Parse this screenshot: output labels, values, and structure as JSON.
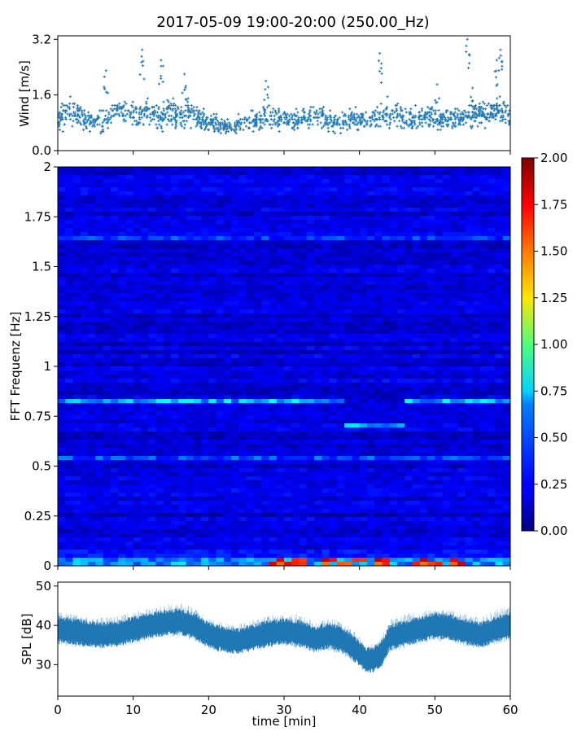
{
  "title": "2017-05-09 19:00-20:00 (250.00_Hz)",
  "chart_data": [
    {
      "type": "scatter",
      "ylabel": "Wind [m/s]",
      "xlim": [
        0,
        60
      ],
      "ylim": [
        0,
        3.3
      ],
      "yticks": [
        0.0,
        1.6,
        3.2
      ],
      "yticklabels": [
        "0.0",
        "1.6",
        "3.2"
      ],
      "marker": "+",
      "color": "#1f77b4",
      "series": [
        {
          "x": [
            0.5,
            1.5,
            3,
            4.5,
            6,
            7.5,
            9,
            10.5,
            12,
            13.5,
            15,
            16.5,
            18,
            19.5,
            21,
            22.5,
            24,
            25.5,
            27,
            28.5,
            30,
            31.5,
            33,
            34.5,
            36,
            37.5,
            39,
            40.5,
            42,
            43.5,
            45,
            46.5,
            48,
            49.5,
            51,
            52.5,
            54,
            55.5,
            57,
            58.5,
            59.5
          ],
          "y": [
            0.95,
            1.1,
            1.0,
            0.85,
            0.8,
            1.2,
            1.05,
            0.95,
            1.1,
            0.9,
            1.15,
            1.0,
            1.05,
            0.85,
            0.75,
            0.7,
            0.75,
            0.8,
            0.9,
            0.95,
            0.9,
            0.85,
            0.95,
            1.0,
            0.85,
            0.8,
            0.9,
            0.85,
            0.95,
            1.05,
            1.1,
            0.9,
            0.95,
            1.0,
            0.9,
            0.95,
            1.0,
            1.05,
            1.1,
            1.15,
            1.0
          ],
          "spread": [
            0.55,
            0.6,
            0.55,
            0.5,
            0.55,
            0.6,
            0.55,
            0.5,
            0.6,
            0.55,
            0.55,
            0.6,
            0.5,
            0.45,
            0.4,
            0.4,
            0.4,
            0.45,
            0.5,
            0.5,
            0.5,
            0.45,
            0.5,
            0.55,
            0.5,
            0.45,
            0.5,
            0.45,
            0.5,
            0.6,
            0.55,
            0.5,
            0.5,
            0.5,
            0.45,
            0.5,
            0.5,
            0.55,
            0.55,
            0.6,
            0.55
          ],
          "peaks": [
            [
              11.2,
              2.9
            ],
            [
              13.7,
              2.6
            ],
            [
              16.8,
              2.2
            ],
            [
              6.4,
              2.3
            ],
            [
              27.6,
              2.0
            ],
            [
              42.7,
              2.8
            ],
            [
              54.3,
              3.2
            ],
            [
              58.7,
              2.9
            ],
            [
              58.2,
              2.6
            ],
            [
              50.3,
              1.9
            ],
            [
              55.0,
              1.8
            ]
          ]
        }
      ]
    },
    {
      "type": "heatmap",
      "ylabel": "FFT Frequenz [Hz]",
      "xlim": [
        0,
        60
      ],
      "ylim": [
        0,
        2
      ],
      "yticks": [
        0,
        0.25,
        0.5,
        0.75,
        1,
        1.25,
        1.5,
        1.75,
        2
      ],
      "yticklabels": [
        "0",
        "0.25",
        "0.5",
        "0.75",
        "1",
        "1.25",
        "1.5",
        "1.75",
        "2"
      ],
      "colormap": "jet",
      "colorbar": {
        "vmin": 0.0,
        "vmax": 2.0,
        "ticks": [
          "0.00",
          "0.25",
          "0.50",
          "0.75",
          "1.00",
          "1.25",
          "1.50",
          "1.75",
          "2.00"
        ]
      },
      "background_level": 0.18,
      "bands": [
        {
          "freq": 0.83,
          "x": [
            0,
            60
          ],
          "level": 0.75,
          "x_dip": [
            38,
            46
          ],
          "dip_freq": 0.7
        },
        {
          "freq": 1.65,
          "x": [
            0,
            60
          ],
          "level": 0.55
        },
        {
          "freq": 0.54,
          "x": [
            0,
            60
          ],
          "level": 0.45
        },
        {
          "freq": 0.02,
          "x": [
            0,
            60
          ],
          "level": 1.0,
          "hot": [
            [
              28,
              33
            ],
            [
              35,
              44
            ],
            [
              47,
              54
            ]
          ],
          "hot_level": 1.9
        }
      ]
    },
    {
      "type": "area",
      "xlabel": "time [min]",
      "ylabel": "SPL [dB]",
      "xlim": [
        0,
        60
      ],
      "ylim": [
        22,
        51
      ],
      "xticks": [
        0,
        10,
        20,
        30,
        40,
        50,
        60
      ],
      "xticklabels": [
        "0",
        "10",
        "20",
        "30",
        "40",
        "50",
        "60"
      ],
      "yticks": [
        30,
        40,
        50
      ],
      "yticklabels": [
        "30",
        "40",
        "50"
      ],
      "color": "#1f77b4",
      "x": [
        0,
        2,
        4,
        6,
        8,
        10,
        12,
        14,
        16,
        18,
        20,
        22,
        24,
        26,
        28,
        30,
        32,
        34,
        36,
        38,
        40,
        41,
        42,
        43,
        44,
        46,
        48,
        50,
        52,
        54,
        56,
        58,
        60
      ],
      "y": [
        39,
        38.5,
        38,
        37.5,
        38,
        39,
        40,
        40.5,
        41,
        40,
        37.5,
        36.5,
        36,
        37,
        38,
        38.5,
        38,
        36.5,
        37.5,
        36,
        33,
        31,
        31.5,
        33,
        37,
        38,
        39,
        40,
        39.5,
        38.5,
        37.5,
        39,
        40
      ],
      "envelope_low": [
        35,
        34.5,
        34,
        34,
        34.5,
        35,
        36,
        37,
        37,
        36,
        33.5,
        33,
        32.5,
        33,
        34,
        34.5,
        34,
        33,
        33.5,
        32,
        29.5,
        27.5,
        28,
        29.5,
        33,
        34,
        35,
        36,
        35.5,
        34.5,
        34,
        35,
        36
      ],
      "envelope_high": [
        43.5,
        43,
        42,
        42,
        42.5,
        43.5,
        44.5,
        45,
        46,
        44.5,
        42,
        40.5,
        40.5,
        41.5,
        42.5,
        43,
        43,
        41,
        42,
        40.5,
        37.5,
        35,
        35.5,
        37.5,
        41.5,
        43,
        43.5,
        44.5,
        44,
        43,
        42,
        44,
        45
      ]
    }
  ]
}
